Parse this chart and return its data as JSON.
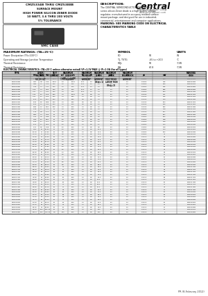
{
  "title_box": "CMZ5334B THRU CMZ5388B",
  "subtitle_lines": [
    "SURFACE MOUNT",
    "HIGH POWER SILICON ZENER DIODE",
    "10 WATT, 3.6 THRU 200 VOLTS",
    "5% TOLERANCE"
  ],
  "smc_label": "SMC CASE",
  "desc_title": "DESCRIPTION:",
  "desc_text": "The CENTRAL SEMICONDUCTOR CMZ5334B\nseries silicon Zener diode is a high quality voltage\nregulator, manufactured in an epoxy molded surface\nmount package, and designed for use in industrial,\ncommercial, entertainment and computer applications.",
  "marking_text": "MARKING: SEE MARKING CODE ON ELECTRICAL\nCHARACTERISTICS TABLE",
  "max_ratings_title": "MAXIMUM RATINGS: (TA=25°C)",
  "symbols_title": "SYMBOL",
  "units_title": "UNITS",
  "elec_char_title": "ELECTRICAL CHARACTERISTICS: (TA=25°C unless otherwise noted) VF=1.2V MAX @ IF=1.0A (for all types)",
  "table_data": [
    [
      "CMZ5334B",
      "3.42",
      "3.6",
      "3.78",
      "1000",
      "2.0",
      "1000",
      "25.0",
      "1.0",
      "1.0",
      "2.0",
      "2.0",
      "0.0050",
      "400",
      "CMZ5334B"
    ],
    [
      "CMZ5336B",
      "3.61",
      "3.8",
      "3.99",
      "1000",
      "2.0",
      "1000",
      "22.0",
      "1.0",
      "1.5",
      "2.0",
      "2.0",
      "0.0050",
      "375",
      "CMZ5336B"
    ],
    [
      "CMZ5337B",
      "3.80",
      "4.0",
      "4.20",
      "500",
      "2.0",
      "500",
      "22.0",
      "1.0",
      "1.5",
      "2.0",
      "2.0",
      "0.0050",
      "350",
      "CMZ5337B"
    ],
    [
      "CMZ5338B",
      "3.99",
      "4.2",
      "4.41",
      "500",
      "2.0",
      "500",
      "22.0",
      "1.0",
      "2.0",
      "2.0",
      "2.0",
      "0.0050",
      "325",
      "CMZ5338B"
    ],
    [
      "CMZ5339B",
      "4.18",
      "4.4",
      "4.62",
      "500",
      "2.0",
      "500",
      "22.0",
      "1.0",
      "2.0",
      "2.0",
      "2.0",
      "0.0050",
      "295",
      "CMZ5339B"
    ],
    [
      "CMZ5340B",
      "4.37",
      "4.7",
      "4.94",
      "500",
      "4.0",
      "500",
      "13.0",
      "1.0",
      "3.0",
      "5.0",
      "2.0",
      "0.0050",
      "260",
      "CMZ5340B"
    ],
    [
      "CMZ5341B",
      "4.75",
      "5.0",
      "5.25",
      "200",
      "7.0",
      "1000",
      "5.0",
      "0.5",
      "7.0",
      "5.0",
      "2.0",
      "0.0100",
      "241",
      "CMZ5341B"
    ],
    [
      "CMZ5342B",
      "4.94",
      "5.2",
      "5.46",
      "200",
      "7.0",
      "600",
      "4.0",
      "0.5",
      "7.0",
      "5.0",
      "2.0",
      "0.0100",
      "232",
      "CMZ5342B"
    ],
    [
      "CMZ5343B",
      "5.13",
      "5.4",
      "5.67",
      "150",
      "7.0",
      "600",
      "3.5",
      "0.5",
      "7.0",
      "5.0",
      "2.0",
      "0.0100",
      "220",
      "CMZ5343B"
    ],
    [
      "CMZ5344B",
      "5.32",
      "5.6",
      "5.88",
      "100",
      "7.0",
      "600",
      "3.5",
      "0.5",
      "7.0",
      "5.0",
      "2.0",
      "0.0100",
      "204",
      "CMZ5344B"
    ],
    [
      "CMZ5345B",
      "5.70",
      "6.0",
      "6.30",
      "100",
      "7.0",
      "150",
      "3.5",
      "0.5",
      "6.0",
      "5.0",
      "2.0",
      "0.0100",
      "196",
      "CMZ5345B"
    ],
    [
      "CMZ5346B",
      "5.89",
      "6.2",
      "6.51",
      "100",
      "7.0",
      "150",
      "3.0",
      "0.5",
      "6.0",
      "5.0",
      "2.0",
      "0.0100",
      "182",
      "CMZ5346B"
    ],
    [
      "CMZ5347B",
      "6.08",
      "6.4",
      "6.72",
      "75",
      "7.0",
      "150",
      "3.0",
      "0.5",
      "6.0",
      "5.0",
      "2.0",
      "0.0100",
      "178",
      "CMZ5347B"
    ],
    [
      "CMZ5348B",
      "6.46",
      "6.8",
      "7.14",
      "75",
      "7.0",
      "150",
      "3.0",
      "0.5",
      "6.0",
      "5.0",
      "2.0",
      "0.0100",
      "167",
      "CMZ5348B"
    ],
    [
      "CMZ5349B",
      "6.84",
      "7.2",
      "7.56",
      "75",
      "6.5",
      "150",
      "3.0",
      "0.5",
      "7.2",
      "5.0",
      "2.0",
      "0.0050",
      "157",
      "CMZ5349B"
    ],
    [
      "CMZ5350B",
      "7.22",
      "7.5",
      "7.88",
      "75",
      "6.0",
      "150",
      "3.0",
      "0.5",
      "7.5",
      "5.0",
      "2.0",
      "0.0050",
      "152",
      "CMZ5350B"
    ],
    [
      "CMZ5351B",
      "7.60",
      "8.2",
      "8.61",
      "75",
      "5.0",
      "150",
      "3.0",
      "0.5",
      "8.2",
      "5.0",
      "2.0",
      "0.0050",
      "138",
      "CMZ5351B"
    ],
    [
      "CMZ5352B",
      "8.36",
      "8.7",
      "9.14",
      "75",
      "5.0",
      "150",
      "3.0",
      "0.5",
      "8.7",
      "5.0",
      "2.0",
      "0.0050",
      "128",
      "CMZ5352B"
    ],
    [
      "CMZ5353B",
      "8.74",
      "9.1",
      "9.56",
      "75",
      "5.0",
      "150",
      "3.0",
      "0.5",
      "9.1",
      "5.0",
      "2.0",
      "0.0050",
      "124",
      "CMZ5353B"
    ],
    [
      "CMZ5354B",
      "9.12",
      "9.5",
      "9.98",
      "75",
      "5.0",
      "150",
      "3.0",
      "0.5",
      "9.5",
      "5.0",
      "2.0",
      "0.0050",
      "118",
      "CMZ5354B"
    ],
    [
      "CMZ5355B",
      "9.50",
      "10",
      "10.50",
      "75",
      "5.0",
      "150",
      "3.0",
      "0.5",
      "10.0",
      "5.0",
      "2.0",
      "0.0050",
      "113",
      "CMZ5355B"
    ],
    [
      "CMZ5356B",
      "10.45",
      "11",
      "11.55",
      "75",
      "4.5",
      "150",
      "3.0",
      "0.5",
      "11.0",
      "5.0",
      "2.0",
      "0.0050",
      "102",
      "CMZ5356B"
    ],
    [
      "CMZ5357B",
      "11.40",
      "12",
      "12.60",
      "75",
      "3.5",
      "150",
      "3.0",
      "0.5",
      "12.0",
      "5.0",
      "2.0",
      "0.0050",
      "93",
      "CMZ5357B"
    ],
    [
      "CMZ5358B",
      "12.35",
      "13",
      "13.65",
      "25",
      "4.0",
      "150",
      "3.0",
      "0.5",
      "13.0",
      "5.0",
      "2.0",
      "0.0010",
      "86",
      "CMZ5358B"
    ],
    [
      "CMZ5359B",
      "13.30",
      "14",
      "14.70",
      "25",
      "4.0",
      "150",
      "3.0",
      "0.5",
      "14.0",
      "5.0",
      "2.0",
      "0.0010",
      "80",
      "CMZ5359B"
    ],
    [
      "CMZ5360B",
      "14.25",
      "15",
      "15.75",
      "25",
      "4.0",
      "150",
      "3.0",
      "0.5",
      "15.0",
      "5.0",
      "2.0",
      "0.0010",
      "75",
      "CMZ5360B"
    ],
    [
      "CMZ5361B",
      "15.20",
      "16",
      "16.80",
      "25",
      "4.5",
      "150",
      "3.0",
      "0.5",
      "16.0",
      "5.0",
      "2.0",
      "0.0010",
      "70",
      "CMZ5361B"
    ],
    [
      "CMZ5362B",
      "16.15",
      "17",
      "17.85",
      "25",
      "5.0",
      "150",
      "3.0",
      "0.5",
      "17.0",
      "5.0",
      "2.0",
      "0.0010",
      "66",
      "CMZ5362B"
    ],
    [
      "CMZ5363B",
      "17.10",
      "18",
      "18.90",
      "25",
      "5.5",
      "150",
      "3.0",
      "0.5",
      "18.0",
      "5.0",
      "2.0",
      "0.0010",
      "62",
      "CMZ5363B"
    ],
    [
      "CMZ5364B",
      "18.05",
      "19",
      "19.95",
      "25",
      "6.0",
      "150",
      "3.0",
      "0.5",
      "19.0",
      "5.0",
      "2.0",
      "0.0010",
      "59",
      "CMZ5364B"
    ],
    [
      "CMZ5365B",
      "19.00",
      "20",
      "21.00",
      "25",
      "6.5",
      "150",
      "3.0",
      "0.5",
      "20.0",
      "5.0",
      "2.0",
      "0.0010",
      "56",
      "CMZ5365B"
    ],
    [
      "CMZ5366B",
      "20.90",
      "22",
      "23.10",
      "25",
      "7.0",
      "150",
      "3.0",
      "0.5",
      "22.0",
      "5.0",
      "2.0",
      "0.0010",
      "51",
      "CMZ5366B"
    ],
    [
      "CMZ5367B",
      "22.80",
      "24",
      "25.20",
      "25",
      "7.5",
      "150",
      "3.0",
      "0.5",
      "24.0",
      "5.0",
      "2.0",
      "0.0010",
      "47",
      "CMZ5367B"
    ],
    [
      "CMZ5368B",
      "24.70",
      "26",
      "27.30",
      "25",
      "8.5",
      "150",
      "3.0",
      "0.5",
      "26.0",
      "5.0",
      "2.0",
      "0.0010",
      "43",
      "CMZ5368B"
    ],
    [
      "CMZ5369B",
      "26.60",
      "28",
      "29.40",
      "25",
      "9.5",
      "150",
      "3.0",
      "0.5",
      "28.0",
      "5.0",
      "2.0",
      "0.0010",
      "40",
      "CMZ5369B"
    ],
    [
      "CMZ5370B",
      "28.50",
      "30",
      "31.50",
      "25",
      "11",
      "150",
      "3.0",
      "0.5",
      "30.0",
      "5.0",
      "2.0",
      "0.0010",
      "37",
      "CMZ5370B"
    ],
    [
      "CMZ5371B",
      "30.40",
      "33",
      "34.70",
      "15",
      "14",
      "150",
      "3.0",
      "0.5",
      "33.0",
      "5.0",
      "2.0",
      "0.0010",
      "34",
      "CMZ5371B"
    ],
    [
      "CMZ5372B",
      "33.25",
      "35",
      "36.75",
      "15",
      "15",
      "150",
      "3.0",
      "0.5",
      "35.0",
      "5.0",
      "2.0",
      "0.0010",
      "32",
      "CMZ5372B"
    ],
    [
      "CMZ5373B",
      "35.15",
      "37",
      "38.85",
      "15",
      "15",
      "150",
      "3.0",
      "0.5",
      "37.0",
      "5.0",
      "2.0",
      "0.0010",
      "30",
      "CMZ5373B"
    ],
    [
      "CMZ5374B",
      "37.05",
      "39",
      "40.95",
      "15",
      "15",
      "150",
      "3.0",
      "0.5",
      "39.0",
      "5.0",
      "2.0",
      "0.0010",
      "28",
      "CMZ5374B"
    ],
    [
      "CMZ5375B",
      "38.95",
      "41",
      "43.05",
      "15",
      "17",
      "150",
      "3.0",
      "0.5",
      "41.0",
      "5.0",
      "2.0",
      "0.0010",
      "27",
      "CMZ5375B"
    ],
    [
      "CMZ5376B",
      "41.80",
      "43",
      "45.15",
      "15",
      "19",
      "150",
      "3.0",
      "0.5",
      "43.0",
      "5.0",
      "2.0",
      "0.0010",
      "26",
      "CMZ5376B"
    ],
    [
      "CMZ5377B",
      "43.70",
      "46",
      "48.30",
      "15",
      "21",
      "150",
      "3.0",
      "0.5",
      "46.0",
      "5.0",
      "2.0",
      "0.0010",
      "24",
      "CMZ5377B"
    ],
    [
      "CMZ5378B",
      "46.55",
      "49",
      "51.45",
      "15",
      "22",
      "150",
      "3.0",
      "0.5",
      "49.0",
      "5.0",
      "2.0",
      "0.0010",
      "23",
      "CMZ5378B"
    ],
    [
      "CMZ5379B",
      "49.40",
      "52",
      "54.60",
      "15",
      "23",
      "150",
      "3.0",
      "0.5",
      "52.0",
      "5.0",
      "2.0",
      "0.0010",
      "21",
      "CMZ5379B"
    ],
    [
      "CMZ5380B",
      "52.25",
      "56",
      "58.80",
      "15",
      "26",
      "150",
      "3.0",
      "0.5",
      "56.0",
      "5.0",
      "2.0",
      "0.0010",
      "20",
      "CMZ5380B"
    ],
    [
      "CMZ5381B",
      "55.10",
      "60",
      "63.00",
      "15",
      "28",
      "150",
      "3.0",
      "0.5",
      "60.0",
      "5.0",
      "2.0",
      "0.0010",
      "18",
      "CMZ5381B"
    ],
    [
      "CMZ5382B",
      "57.00",
      "64",
      "67.20",
      "15",
      "31",
      "150",
      "3.0",
      "0.5",
      "64.0",
      "5.0",
      "2.0",
      "0.0010",
      "17",
      "CMZ5382B"
    ],
    [
      "CMZ5383B",
      "62.70",
      "66",
      "69.30",
      "15",
      "33",
      "150",
      "3.0",
      "0.5",
      "66.0",
      "5.0",
      "2.0",
      "0.0010",
      "17",
      "CMZ5383B"
    ],
    [
      "CMZ5384B",
      "70.30",
      "75",
      "78.75",
      "15",
      "38",
      "150",
      "3.0",
      "0.5",
      "75.0",
      "5.0",
      "2.0",
      "0.0010",
      "15",
      "CMZ5384B"
    ],
    [
      "CMZ5385B",
      "75.20",
      "82",
      "86.10",
      "15",
      "42",
      "150",
      "3.0",
      "0.5",
      "82.0",
      "5.0",
      "2.0",
      "0.0010",
      "13",
      "CMZ5385B"
    ],
    [
      "CMZ5386B",
      "84.15",
      "91",
      "95.55",
      "15",
      "50",
      "150",
      "3.0",
      "0.5",
      "91.0",
      "5.0",
      "2.0",
      "0.0010",
      "12",
      "CMZ5386B"
    ],
    [
      "CMZ5387B",
      "94.05",
      "100",
      "105.00",
      "15",
      "56",
      "150",
      "3.0",
      "0.5",
      "100",
      "5.0",
      "2.0",
      "0.0010",
      "11",
      "CMZ5387B"
    ],
    [
      "CMZ5388B",
      "190.0",
      "200",
      "210.00",
      "6.5",
      "100",
      "150",
      "3.0",
      "0.5",
      "200",
      "5.0",
      "2.0",
      "0.0010",
      "5",
      "CMZ5388B"
    ]
  ],
  "footer_text": "PR (8-February 2012)",
  "bg_color": "#ffffff",
  "watermark_color_blue": "#b8cfe8",
  "watermark_color_orange": "#e8b870"
}
